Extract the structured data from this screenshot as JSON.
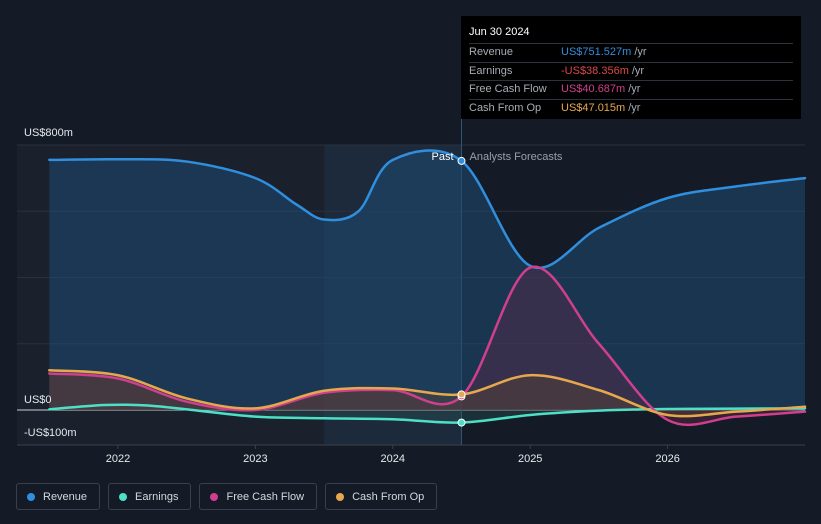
{
  "chart_data": {
    "type": "area",
    "y_axis_labels": {
      "top": "US$800m",
      "zero": "US$0",
      "bottom": "-US$100m"
    },
    "ylim": [
      -100,
      800
    ],
    "x_ticks": [
      "2022",
      "2023",
      "2024",
      "2025",
      "2026"
    ],
    "xlim": [
      2021.5,
      2027.0
    ],
    "divider_label_past": "Past",
    "divider_label_forecast": "Analysts Forecasts",
    "highlight_start": 2023.5,
    "forecast_start": 2024.5,
    "series": [
      {
        "name": "Revenue",
        "color": "#2f8fde",
        "x": [
          2021.5,
          2022.0,
          2022.5,
          2023.0,
          2023.3,
          2023.5,
          2023.75,
          2024.0,
          2024.5,
          2025.0,
          2025.5,
          2026.0,
          2026.5,
          2027.0
        ],
        "y": [
          755,
          757,
          750,
          700,
          620,
          575,
          600,
          755,
          752,
          435,
          550,
          640,
          675,
          700
        ]
      },
      {
        "name": "Earnings",
        "color": "#4ee0c7",
        "x": [
          2021.5,
          2021.9,
          2022.2,
          2022.5,
          2023.0,
          2023.5,
          2024.0,
          2024.5,
          2025.0,
          2025.5,
          2026.0,
          2026.5,
          2027.0
        ],
        "y": [
          2,
          15,
          14,
          2,
          -20,
          -25,
          -28,
          -38,
          -15,
          -2,
          3,
          4,
          5
        ]
      },
      {
        "name": "Free Cash Flow",
        "color": "#cf3f8d",
        "x": [
          2021.5,
          2022.0,
          2022.5,
          2023.0,
          2023.5,
          2024.0,
          2024.5,
          2025.0,
          2025.5,
          2026.0,
          2026.5,
          2027.0
        ],
        "y": [
          110,
          95,
          25,
          0,
          52,
          60,
          41,
          430,
          200,
          -30,
          -20,
          -5
        ]
      },
      {
        "name": "Cash From Op",
        "color": "#e6a84f",
        "x": [
          2021.5,
          2022.0,
          2022.5,
          2023.0,
          2023.5,
          2024.0,
          2024.5,
          2025.0,
          2025.5,
          2026.0,
          2026.5,
          2027.0
        ],
        "y": [
          120,
          105,
          35,
          5,
          58,
          65,
          47,
          105,
          60,
          -15,
          -5,
          10
        ]
      }
    ]
  },
  "tooltip": {
    "date": "Jun 30 2024",
    "rows": [
      {
        "label": "Revenue",
        "value": "US$751.527m",
        "unit": "/yr",
        "color": "#2f8fde"
      },
      {
        "label": "Earnings",
        "value": "-US$38.356m",
        "unit": "/yr",
        "color": "#e04848"
      },
      {
        "label": "Free Cash Flow",
        "value": "US$40.687m",
        "unit": "/yr",
        "color": "#cf3f8d"
      },
      {
        "label": "Cash From Op",
        "value": "US$47.015m",
        "unit": "/yr",
        "color": "#e6a84f"
      }
    ]
  },
  "legend": [
    {
      "label": "Revenue",
      "color": "#2f8fde"
    },
    {
      "label": "Earnings",
      "color": "#4ee0c7"
    },
    {
      "label": "Free Cash Flow",
      "color": "#cf3f8d"
    },
    {
      "label": "Cash From Op",
      "color": "#e6a84f"
    }
  ]
}
